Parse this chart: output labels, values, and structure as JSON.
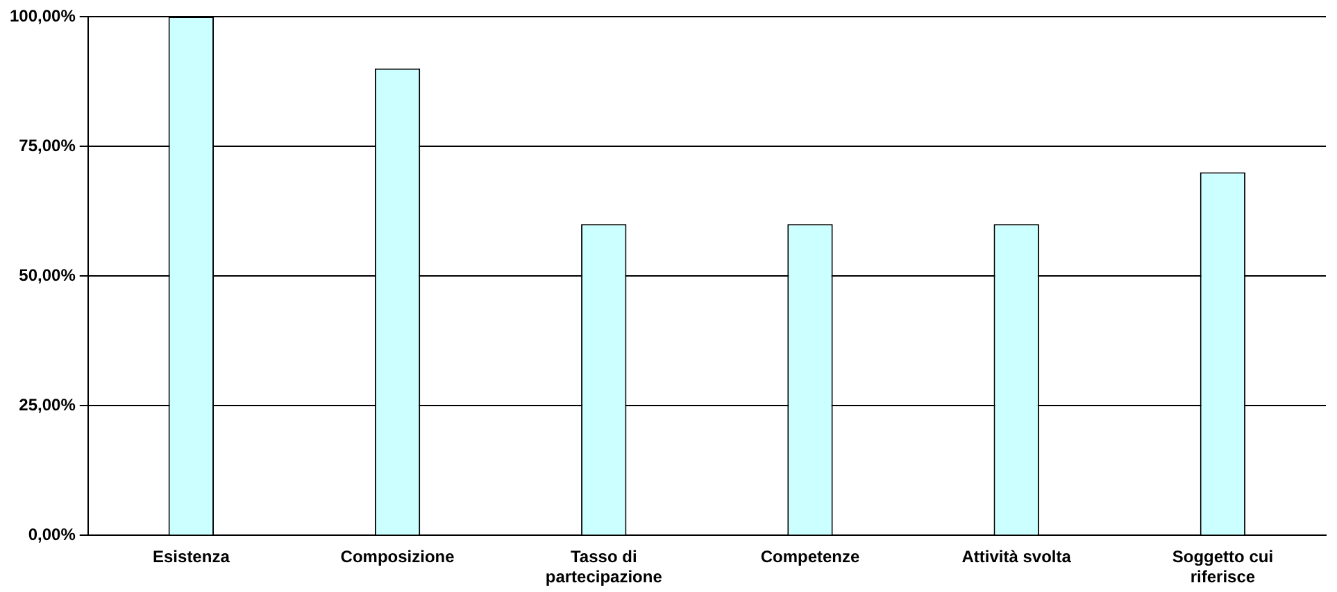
{
  "chart_data": {
    "type": "bar",
    "categories": [
      "Esistenza",
      "Composizione",
      "Tasso di partecipazione",
      "Competenze",
      "Attività svolta",
      "Soggetto cui riferisce"
    ],
    "values": [
      100,
      90,
      60,
      60,
      60,
      70
    ],
    "color": "#ccffff",
    "ylim": [
      0,
      100
    ],
    "yticks": [
      {
        "value": 0,
        "label": "0,00%"
      },
      {
        "value": 25,
        "label": "25,00%"
      },
      {
        "value": 50,
        "label": "50,00%"
      },
      {
        "value": 75,
        "label": "75,00%"
      },
      {
        "value": 100,
        "label": "100,00%"
      }
    ],
    "grid": "y"
  }
}
